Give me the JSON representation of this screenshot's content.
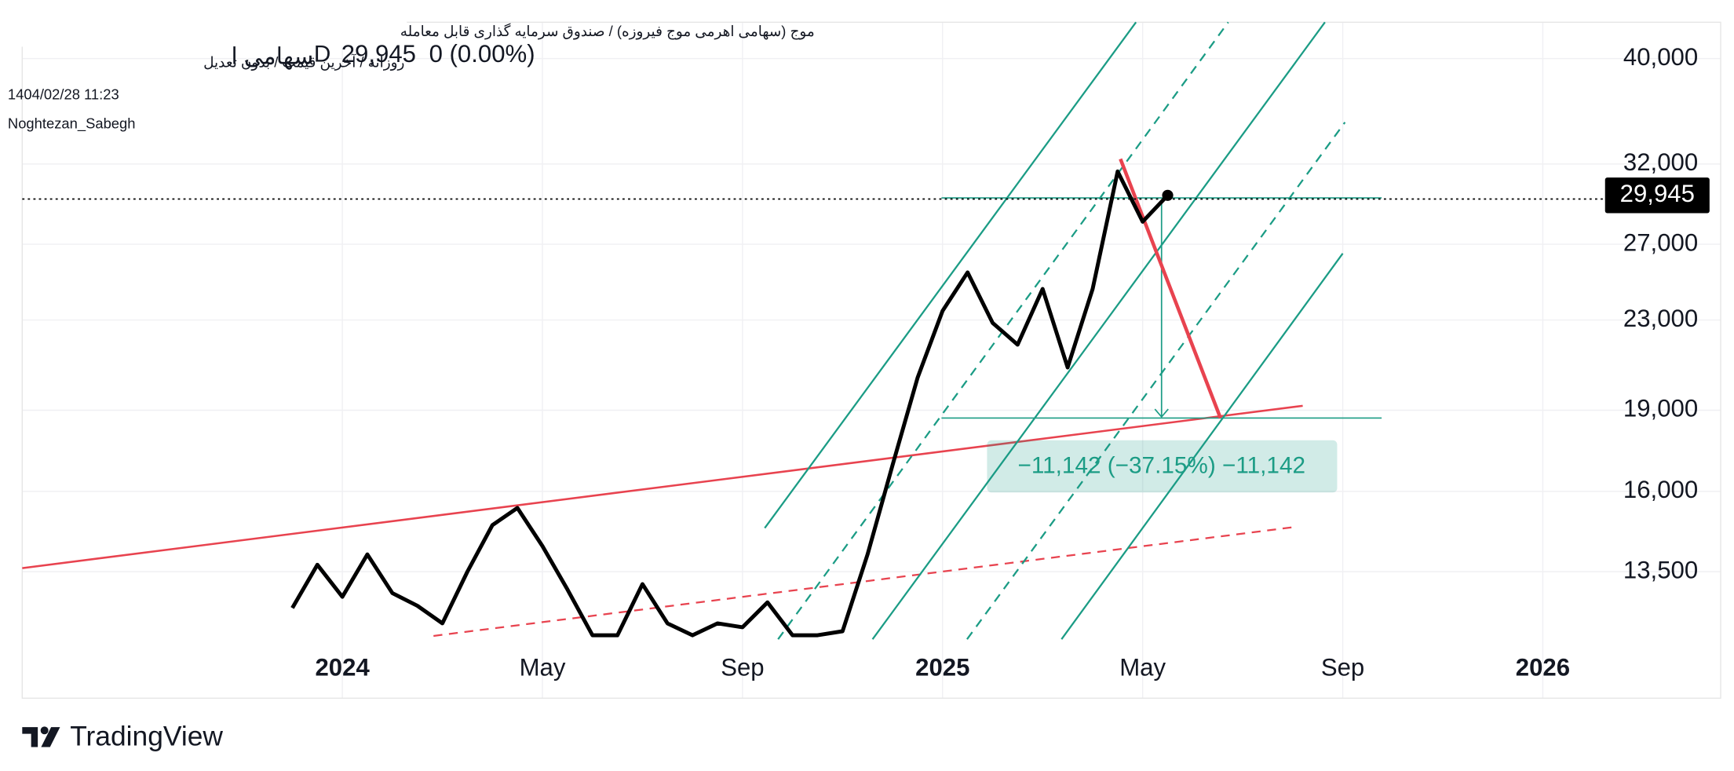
{
  "header": {
    "title": "موج (سهامی اهرمی موج فیروزه) / صندوق سرمایه گذاری قابل معامله",
    "settings": "روزانه / آخرین قیمت / بدون تعدیل",
    "symbol": "سهامی ا",
    "interval": "D",
    "change": "0 (0.00%)",
    "datetime": "1404/02/28 11:23",
    "author": "Noghtezan_Sabegh"
  },
  "footer": {
    "brand": "TradingView"
  },
  "chart_data": {
    "type": "line",
    "ylog": true,
    "grid": true,
    "categories": [
      null,
      null,
      "2024",
      null,
      null,
      null,
      null,
      null,
      null,
      null,
      "May",
      null,
      null,
      null,
      null,
      null,
      null,
      null,
      "Sep",
      null,
      null,
      null,
      null,
      null,
      null,
      null,
      "2025",
      null,
      null,
      null,
      null,
      null,
      null,
      null,
      "May",
      null,
      null,
      null,
      null,
      null,
      null,
      null,
      "Sep",
      null,
      null,
      null,
      null,
      null,
      null,
      null,
      "2026"
    ],
    "series": [
      {
        "color": "#000000",
        "values": [
          12500,
          13700,
          12800,
          14000,
          12900,
          12560,
          12100,
          13500,
          14900,
          15450,
          14250,
          13000,
          11800,
          11800,
          13150,
          12100,
          11800,
          12100,
          12000,
          12650,
          11800,
          11800,
          11900,
          14000,
          16920,
          20350,
          23450,
          25440,
          22860,
          21830,
          24560,
          20800,
          24560,
          31500,
          28320,
          29945,
          null,
          null,
          null,
          null,
          null,
          null,
          null,
          null,
          null,
          null,
          null,
          null,
          null,
          null,
          null
        ],
        "value_labels": [
          null,
          null,
          null,
          null,
          null,
          null,
          null,
          null,
          null,
          null,
          null,
          null,
          null,
          null,
          null,
          null,
          null,
          null,
          null,
          null,
          null,
          null,
          null,
          null,
          null,
          null,
          null,
          null,
          null,
          null,
          null,
          null,
          null,
          null,
          null,
          "29,945",
          null,
          null,
          null,
          null,
          null,
          null,
          null,
          null,
          null,
          null,
          null,
          null,
          null,
          null,
          null
        ]
      }
    ],
    "ylim": [
      11700,
      43200
    ],
    "yticks": [
      {
        "value": 13500,
        "label": "13,500"
      },
      {
        "value": 16000,
        "label": "16,000"
      },
      {
        "value": 19000,
        "label": "19,000"
      },
      {
        "value": 23000,
        "label": "23,000"
      },
      {
        "value": 27000,
        "label": "27,000"
      },
      {
        "value": 32000,
        "label": "32,000"
      },
      {
        "value": 40000,
        "label": "40,000"
      }
    ],
    "annotations": [
      "−11,142 (−37.15%) −11,142"
    ]
  }
}
